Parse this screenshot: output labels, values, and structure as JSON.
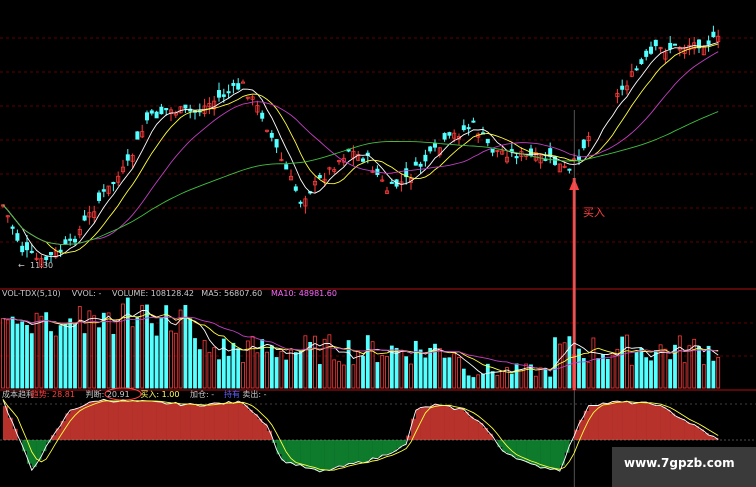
{
  "chart_data": {
    "type": "candlestick",
    "panels": [
      {
        "name": "price",
        "time_label": "11:30",
        "buy_annotation": "买入",
        "lines": [
          "MA-fast",
          "MA-mid",
          "MA-slow",
          "MA-long"
        ]
      },
      {
        "name": "volume",
        "header": [
          {
            "text": "VOL-TDX(5,10)",
            "color": "#c8c8c8"
          },
          {
            "text": "VVOL: -",
            "color": "#c8c8c8"
          },
          {
            "text": "VOLUME: 108128.42",
            "color": "#c8c8c8"
          },
          {
            "text": "MA5: 56807.60",
            "color": "#c8c8c8"
          },
          {
            "text": "MA10: 48981.60",
            "color": "#ff66ff"
          }
        ]
      },
      {
        "name": "indicator",
        "header": [
          {
            "text": "成本趋利",
            "color": "#c8c8c8"
          },
          {
            "text": "趋势: 28.81",
            "color": "#ff4040"
          },
          {
            "text": "判断: 20.91",
            "color": "#c8c8c8"
          },
          {
            "text": "买入: 1.00",
            "color": "#ffff60"
          },
          {
            "text": "加仓: -",
            "color": "#c8c8c8"
          },
          {
            "text": "持有",
            "color": "#6060ff"
          },
          {
            "text": "卖出: -",
            "color": "#c8c8c8"
          }
        ]
      }
    ]
  },
  "watermark": {
    "text": "www.7gpzb.com"
  },
  "colors": {
    "up": "#ff3b3b",
    "down": "#54ffff",
    "grid": "#7a0000",
    "buy_line": "#ff4040",
    "ma_fast": "#ffffff",
    "ma_mid": "#ffff40",
    "ma_slow": "#c040c0",
    "ma_long": "#40c040",
    "area_up": "#b8322c",
    "area_down": "#0e7a2c"
  }
}
